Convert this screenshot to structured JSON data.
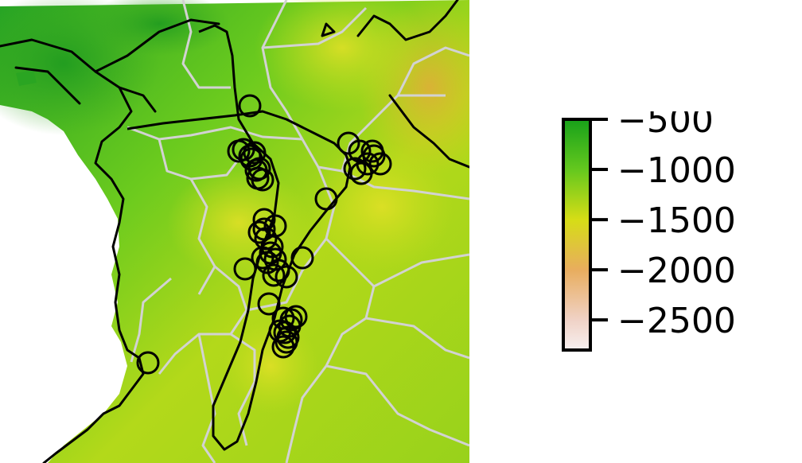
{
  "map": {
    "colors": {
      "sea": "#ffffff",
      "land_high": "#23a321",
      "land_mid": "#7fd11d",
      "land_low": "#d8dc1f",
      "land_lowest": "#e7b24c",
      "border_internal": "#d2d2d2",
      "coastline": "#000000",
      "range_outline": "#000000",
      "occurrence_marker": "#000000"
    },
    "occurrence_count": 45
  },
  "legend": {
    "ticks": [
      {
        "label": "−500",
        "value": -500
      },
      {
        "label": "−1000",
        "value": -1000
      },
      {
        "label": "−1500",
        "value": -1500
      },
      {
        "label": "−2000",
        "value": -2000
      },
      {
        "label": "−2500",
        "value": -2500
      }
    ],
    "range": [
      -500,
      -2800
    ],
    "gradient_stops": [
      {
        "value": -500,
        "color": "#17a11a"
      },
      {
        "value": -1000,
        "color": "#64c81e"
      },
      {
        "value": -1500,
        "color": "#d6dd16"
      },
      {
        "value": -2000,
        "color": "#e8ad5e"
      },
      {
        "value": -2500,
        "color": "#f0d2c6"
      },
      {
        "value": -2800,
        "color": "#f7f0f0"
      }
    ]
  }
}
